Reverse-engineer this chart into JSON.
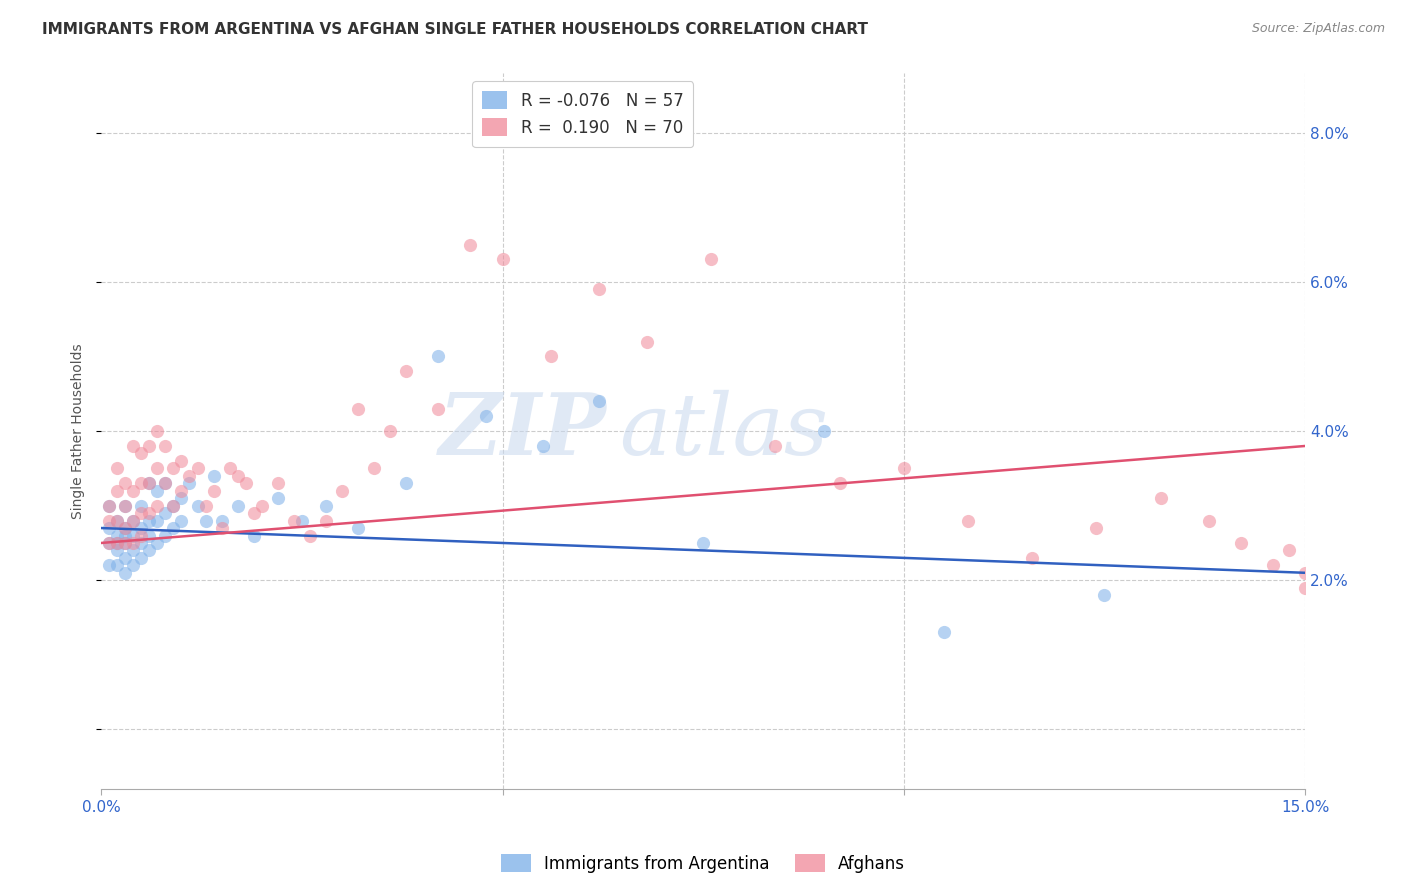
{
  "title": "IMMIGRANTS FROM ARGENTINA VS AFGHAN SINGLE FATHER HOUSEHOLDS CORRELATION CHART",
  "source": "Source: ZipAtlas.com",
  "ylabel": "Single Father Households",
  "right_yticks": [
    0.0,
    0.02,
    0.04,
    0.06,
    0.08
  ],
  "right_yticklabels": [
    "",
    "2.0%",
    "4.0%",
    "6.0%",
    "8.0%"
  ],
  "xmin": 0.0,
  "xmax": 0.15,
  "ymin": -0.008,
  "ymax": 0.088,
  "watermark_part1": "ZIP",
  "watermark_part2": "atlas",
  "argentina_color": "#7aaee8",
  "afghan_color": "#f08898",
  "argentina_line_color": "#3060c0",
  "afghan_line_color": "#e05070",
  "scatter_alpha": 0.55,
  "scatter_size": 90,
  "argentina_x": [
    0.001,
    0.001,
    0.001,
    0.001,
    0.002,
    0.002,
    0.002,
    0.002,
    0.002,
    0.003,
    0.003,
    0.003,
    0.003,
    0.003,
    0.003,
    0.004,
    0.004,
    0.004,
    0.004,
    0.005,
    0.005,
    0.005,
    0.005,
    0.006,
    0.006,
    0.006,
    0.006,
    0.007,
    0.007,
    0.007,
    0.008,
    0.008,
    0.008,
    0.009,
    0.009,
    0.01,
    0.01,
    0.011,
    0.012,
    0.013,
    0.014,
    0.015,
    0.017,
    0.019,
    0.022,
    0.025,
    0.028,
    0.032,
    0.038,
    0.042,
    0.048,
    0.055,
    0.062,
    0.075,
    0.09,
    0.105,
    0.125
  ],
  "argentina_y": [
    0.025,
    0.027,
    0.022,
    0.03,
    0.024,
    0.026,
    0.028,
    0.025,
    0.022,
    0.027,
    0.025,
    0.023,
    0.03,
    0.026,
    0.021,
    0.028,
    0.026,
    0.024,
    0.022,
    0.03,
    0.027,
    0.025,
    0.023,
    0.033,
    0.028,
    0.026,
    0.024,
    0.032,
    0.028,
    0.025,
    0.033,
    0.029,
    0.026,
    0.03,
    0.027,
    0.031,
    0.028,
    0.033,
    0.03,
    0.028,
    0.034,
    0.028,
    0.03,
    0.026,
    0.031,
    0.028,
    0.03,
    0.027,
    0.033,
    0.05,
    0.042,
    0.038,
    0.044,
    0.025,
    0.04,
    0.013,
    0.018
  ],
  "afghanistan_x": [
    0.001,
    0.001,
    0.001,
    0.002,
    0.002,
    0.002,
    0.002,
    0.003,
    0.003,
    0.003,
    0.003,
    0.004,
    0.004,
    0.004,
    0.004,
    0.005,
    0.005,
    0.005,
    0.005,
    0.006,
    0.006,
    0.006,
    0.007,
    0.007,
    0.007,
    0.008,
    0.008,
    0.009,
    0.009,
    0.01,
    0.01,
    0.011,
    0.012,
    0.013,
    0.014,
    0.015,
    0.016,
    0.017,
    0.018,
    0.019,
    0.02,
    0.022,
    0.024,
    0.026,
    0.028,
    0.03,
    0.032,
    0.034,
    0.036,
    0.038,
    0.042,
    0.046,
    0.05,
    0.056,
    0.062,
    0.068,
    0.076,
    0.084,
    0.092,
    0.1,
    0.108,
    0.116,
    0.124,
    0.132,
    0.138,
    0.142,
    0.146,
    0.148,
    0.15,
    0.15
  ],
  "afghanistan_y": [
    0.03,
    0.025,
    0.028,
    0.035,
    0.032,
    0.025,
    0.028,
    0.033,
    0.03,
    0.027,
    0.025,
    0.038,
    0.032,
    0.028,
    0.025,
    0.037,
    0.033,
    0.029,
    0.026,
    0.038,
    0.033,
    0.029,
    0.04,
    0.035,
    0.03,
    0.038,
    0.033,
    0.035,
    0.03,
    0.036,
    0.032,
    0.034,
    0.035,
    0.03,
    0.032,
    0.027,
    0.035,
    0.034,
    0.033,
    0.029,
    0.03,
    0.033,
    0.028,
    0.026,
    0.028,
    0.032,
    0.043,
    0.035,
    0.04,
    0.048,
    0.043,
    0.065,
    0.063,
    0.05,
    0.059,
    0.052,
    0.063,
    0.038,
    0.033,
    0.035,
    0.028,
    0.023,
    0.027,
    0.031,
    0.028,
    0.025,
    0.022,
    0.024,
    0.021,
    0.019
  ],
  "grid_color": "#cccccc",
  "background_color": "#ffffff",
  "title_fontsize": 11,
  "axis_label_fontsize": 10,
  "tick_fontsize": 11,
  "source_fontsize": 9,
  "legend_r_argentina": "R = -0.076",
  "legend_n_argentina": "N = 57",
  "legend_r_afghan": "R =  0.190",
  "legend_n_afghan": "N = 70",
  "legend_label_argentina": "Immigrants from Argentina",
  "legend_label_afghan": "Afghans"
}
